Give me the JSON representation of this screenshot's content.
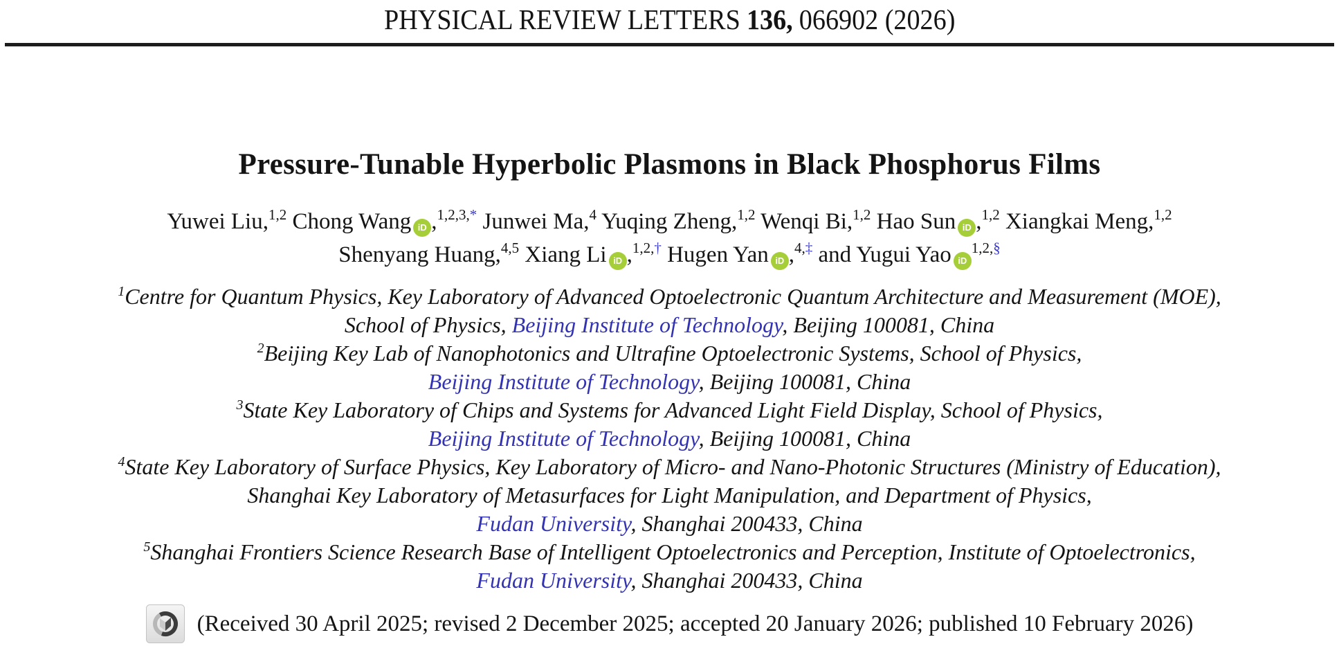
{
  "header": {
    "journal": "PHYSICAL REVIEW LETTERS",
    "volume": "136,",
    "article_number_year": "066902 (2026)"
  },
  "title": "Pressure-Tunable Hyperbolic Plasmons in Black Phosphorus Films",
  "authors": {
    "lines": [
      [
        {
          "name": "Yuwei Liu",
          "orcid": false,
          "comma": true,
          "sup": "1,2"
        },
        {
          "name": "Chong Wang",
          "orcid": true,
          "comma": true,
          "sup": "1,2,3,",
          "note": "*"
        },
        {
          "name": "Junwei Ma",
          "orcid": false,
          "comma": true,
          "sup": "4"
        },
        {
          "name": "Yuqing Zheng",
          "orcid": false,
          "comma": true,
          "sup": "1,2"
        },
        {
          "name": "Wenqi Bi",
          "orcid": false,
          "comma": true,
          "sup": "1,2"
        },
        {
          "name": "Hao Sun",
          "orcid": true,
          "comma": true,
          "sup": "1,2"
        },
        {
          "name": "Xiangkai Meng",
          "orcid": false,
          "comma": true,
          "sup": "1,2"
        }
      ],
      [
        {
          "name": "Shenyang Huang",
          "orcid": false,
          "comma": true,
          "sup": "4,5"
        },
        {
          "name": "Xiang Li",
          "orcid": true,
          "comma": true,
          "sup": "1,2,",
          "note": "†"
        },
        {
          "name": "Hugen Yan",
          "orcid": true,
          "comma": true,
          "sup": "4,",
          "note": "‡"
        },
        {
          "prefix": "and ",
          "name": "Yugui Yao",
          "orcid": true,
          "comma": false,
          "sup": "1,2,",
          "note": "§"
        }
      ]
    ]
  },
  "affiliations": [
    {
      "sup": "1",
      "segments": [
        {
          "text": "Centre for Quantum Physics, Key Laboratory of Advanced Optoelectronic Quantum Architecture and Measurement (MOE),"
        }
      ]
    },
    {
      "segments": [
        {
          "text": "School of Physics, "
        },
        {
          "text": "Beijing Institute of Technology",
          "link": true
        },
        {
          "text": ", Beijing 100081, China"
        }
      ]
    },
    {
      "sup": "2",
      "segments": [
        {
          "text": "Beijing Key Lab of Nanophotonics and Ultrafine Optoelectronic Systems, School of Physics,"
        }
      ]
    },
    {
      "segments": [
        {
          "text": "Beijing Institute of Technology",
          "link": true
        },
        {
          "text": ", Beijing 100081, China"
        }
      ]
    },
    {
      "sup": "3",
      "segments": [
        {
          "text": "State Key Laboratory of Chips and Systems for Advanced Light Field Display, School of Physics,"
        }
      ]
    },
    {
      "segments": [
        {
          "text": "Beijing Institute of Technology",
          "link": true
        },
        {
          "text": ", Beijing 100081, China"
        }
      ]
    },
    {
      "sup": "4",
      "segments": [
        {
          "text": "State Key Laboratory of Surface Physics, Key Laboratory of Micro- and Nano-Photonic Structures (Ministry of Education),"
        }
      ]
    },
    {
      "segments": [
        {
          "text": "Shanghai Key Laboratory of Metasurfaces for Light Manipulation, and Department of Physics,"
        }
      ]
    },
    {
      "segments": [
        {
          "text": "Fudan University",
          "link": true
        },
        {
          "text": ", Shanghai 200433, China"
        }
      ]
    },
    {
      "sup": "5",
      "segments": [
        {
          "text": "Shanghai Frontiers Science Research Base of Intelligent Optoelectronics and Perception, Institute of Optoelectronics,"
        }
      ]
    },
    {
      "segments": [
        {
          "text": "Fudan University",
          "link": true
        },
        {
          "text": ", Shanghai 200433, China"
        }
      ]
    }
  ],
  "dates_line": "(Received 30 April 2025; revised 2 December 2025; accepted 20 January 2026; published 10 February 2026)",
  "icons": {
    "orcid_label": "iD",
    "orcid_name": "orcid-id-badge",
    "crossmark_name": "crossmark-update-badge"
  },
  "colors": {
    "text": "#141414",
    "link_blue": "#3333b2",
    "footnote_blue": "#3a3ac8",
    "orcid_green": "#a6ce39",
    "rule": "#1c1c1c"
  }
}
